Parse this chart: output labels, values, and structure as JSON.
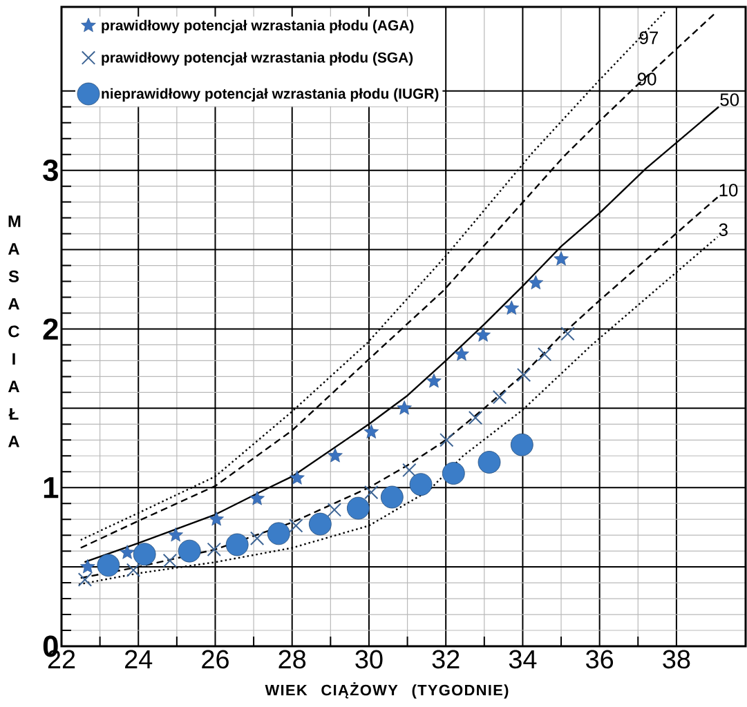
{
  "chart_data": {
    "type": "scatter",
    "xlabel": "WIEK CIĄŻOWY (TYGODNIE)",
    "ylabel": "MASA CIAŁA",
    "xlim": [
      22,
      39.8
    ],
    "ylim": [
      0,
      4.03
    ],
    "xticks": [
      22,
      24,
      26,
      28,
      30,
      32,
      34,
      36,
      38
    ],
    "yticks": [
      0,
      {
        "value": 0.5,
        "label": null
      },
      1,
      {
        "value": 1.5,
        "label": null
      },
      2,
      {
        "value": 2.5,
        "label": null
      },
      3,
      {
        "value": 3.5,
        "label": null
      }
    ],
    "grid": true,
    "legend": "top left",
    "series": [
      {
        "name": "prawidłowy potencjał wzrastania płodu (AGA)",
        "color": "#3a72bf",
        "marker": "star",
        "x": [
          22.68,
          23.71,
          24.97,
          26.03,
          27.09,
          28.13,
          29.12,
          30.06,
          30.92,
          31.69,
          32.41,
          32.97,
          33.71,
          34.34,
          35.0
        ],
        "values": [
          0.5,
          0.59,
          0.7,
          0.8,
          0.93,
          1.06,
          1.2,
          1.35,
          1.5,
          1.67,
          1.84,
          1.96,
          2.13,
          2.29,
          2.44
        ]
      },
      {
        "name": "prawidłowy potencjał wzrastania płodu (SGA)",
        "color": "#3d6494",
        "marker": "cross",
        "x": [
          22.61,
          23.87,
          24.82,
          25.97,
          27.09,
          28.1,
          29.1,
          30.06,
          31.05,
          32.02,
          32.77,
          33.4,
          34.03,
          34.57,
          35.17
        ],
        "values": [
          0.42,
          0.48,
          0.54,
          0.61,
          0.68,
          0.76,
          0.86,
          0.97,
          1.11,
          1.3,
          1.44,
          1.57,
          1.71,
          1.84,
          1.97
        ]
      },
      {
        "name": "nieprawidłowy potencjał wzrastania płodu (IUGR)",
        "color": "#3b7dc8",
        "marker": "circle",
        "x": [
          23.22,
          24.16,
          25.33,
          26.57,
          27.65,
          28.73,
          29.72,
          30.6,
          31.35,
          32.2,
          33.13,
          33.98
        ],
        "values": [
          0.51,
          0.58,
          0.6,
          0.64,
          0.71,
          0.77,
          0.87,
          0.94,
          1.02,
          1.09,
          1.16,
          1.27
        ]
      },
      {
        "type": "line",
        "color": "#000000",
        "line_style": "dotted",
        "marker": "none",
        "x": [
          22.5,
          24,
          26,
          28,
          29.95,
          32,
          34.25,
          36,
          37.7
        ],
        "values": [
          0.67,
          0.84,
          1.07,
          1.48,
          1.91,
          2.46,
          3.11,
          3.57,
          4.0
        ]
      },
      {
        "type": "line",
        "color": "#000000",
        "line_style": "dashed",
        "marker": "none",
        "x": [
          22.5,
          24,
          26,
          28,
          30.27,
          31.93,
          32.9,
          35.08,
          36,
          36.95,
          39.05
        ],
        "values": [
          0.62,
          0.79,
          1.01,
          1.36,
          1.87,
          2.24,
          2.5,
          3.09,
          3.31,
          3.53,
          4.0
        ]
      },
      {
        "type": "line",
        "color": "#000000",
        "line_style": "solid",
        "marker": "none",
        "x": [
          22.6,
          24,
          26,
          27.4,
          28,
          30,
          31,
          32,
          33,
          34,
          35,
          36,
          37.2,
          39.1
        ],
        "values": [
          0.53,
          0.65,
          0.83,
          1.0,
          1.07,
          1.4,
          1.58,
          1.8,
          2.03,
          2.27,
          2.52,
          2.73,
          3.01,
          3.4
        ]
      },
      {
        "type": "line",
        "color": "#000000",
        "line_style": "dashed",
        "marker": "none",
        "x": [
          22.5,
          24,
          26,
          28,
          30,
          31,
          32,
          33,
          34,
          35,
          36,
          39.07
        ],
        "values": [
          0.43,
          0.5,
          0.61,
          0.78,
          1.0,
          1.14,
          1.3,
          1.5,
          1.71,
          1.96,
          2.18,
          2.83
        ]
      },
      {
        "type": "line",
        "color": "#000000",
        "line_style": "dotted",
        "marker": "none",
        "x": [
          22.45,
          24,
          26,
          28,
          30,
          31.55,
          32.45,
          34,
          35.8,
          37.77,
          39.07
        ],
        "values": [
          0.39,
          0.46,
          0.53,
          0.62,
          0.76,
          0.98,
          1.2,
          1.49,
          1.9,
          2.31,
          2.58
        ]
      }
    ],
    "annotations": [
      {
        "text": "97",
        "x": 37.0,
        "y": 3.79
      },
      {
        "text": "90",
        "x": 36.95,
        "y": 3.53
      },
      {
        "text": "50",
        "x": 39.1,
        "y": 3.4
      },
      {
        "text": "10",
        "x": 39.07,
        "y": 2.83
      },
      {
        "text": "3",
        "x": 39.07,
        "y": 2.58
      }
    ]
  }
}
